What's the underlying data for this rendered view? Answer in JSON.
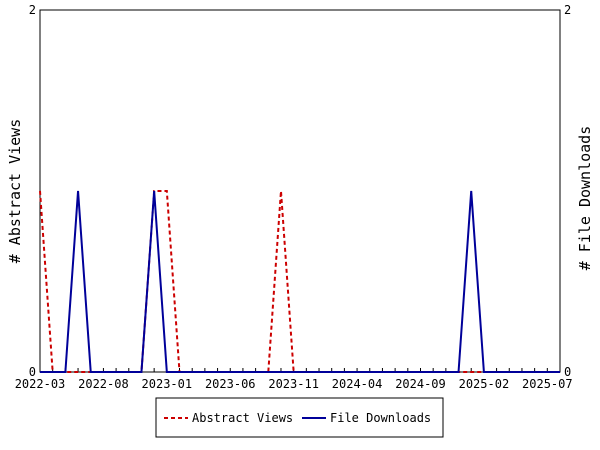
{
  "chart_data": {
    "type": "line",
    "x": [
      "2022-03",
      "2022-04",
      "2022-05",
      "2022-06",
      "2022-07",
      "2022-08",
      "2022-09",
      "2022-10",
      "2022-11",
      "2022-12",
      "2023-01",
      "2023-02",
      "2023-03",
      "2023-04",
      "2023-05",
      "2023-06",
      "2023-07",
      "2023-08",
      "2023-09",
      "2023-10",
      "2023-11",
      "2023-12",
      "2024-01",
      "2024-02",
      "2024-03",
      "2024-04",
      "2024-05",
      "2024-06",
      "2024-07",
      "2024-08",
      "2024-09",
      "2024-10",
      "2024-11",
      "2024-12",
      "2025-01",
      "2025-02",
      "2025-03",
      "2025-04",
      "2025-05",
      "2025-06",
      "2025-07",
      "2025-08"
    ],
    "series": [
      {
        "name": "Abstract Views",
        "color": "#cc0000",
        "style": "dashed",
        "axis": "left",
        "values": [
          1,
          0,
          0,
          0,
          0,
          0,
          0,
          0,
          0,
          1,
          1,
          0,
          0,
          0,
          0,
          0,
          0,
          0,
          0,
          1,
          0,
          0,
          0,
          0,
          0,
          0,
          0,
          0,
          0,
          0,
          0,
          0,
          0,
          0,
          0,
          0,
          0,
          0,
          0,
          0,
          0,
          0
        ]
      },
      {
        "name": "File Downloads",
        "color": "#000099",
        "style": "solid",
        "axis": "right",
        "values": [
          0,
          0,
          0,
          1,
          0,
          0,
          0,
          0,
          0,
          1,
          0,
          0,
          0,
          0,
          0,
          0,
          0,
          0,
          0,
          0,
          0,
          0,
          0,
          0,
          0,
          0,
          0,
          0,
          0,
          0,
          0,
          0,
          0,
          0,
          1,
          0,
          0,
          0,
          0,
          0,
          0,
          0
        ]
      }
    ],
    "x_tick_labels": [
      "2022-03",
      "2022-08",
      "2023-01",
      "2023-06",
      "2023-11",
      "2024-04",
      "2024-09",
      "2025-02",
      "2025-07"
    ],
    "x_tick_indices": [
      0,
      5,
      10,
      15,
      20,
      25,
      30,
      35,
      40
    ],
    "y_left": {
      "label": "# Abstract Views",
      "range": [
        0,
        2
      ],
      "ticks": [
        "0",
        "2"
      ]
    },
    "y_right": {
      "label": "# File Downloads",
      "range": [
        0,
        2
      ],
      "ticks": [
        "0",
        "2"
      ]
    },
    "grid": false,
    "legend": {
      "position": "bottom-center",
      "entries": [
        "Abstract Views",
        "File Downloads"
      ]
    }
  }
}
